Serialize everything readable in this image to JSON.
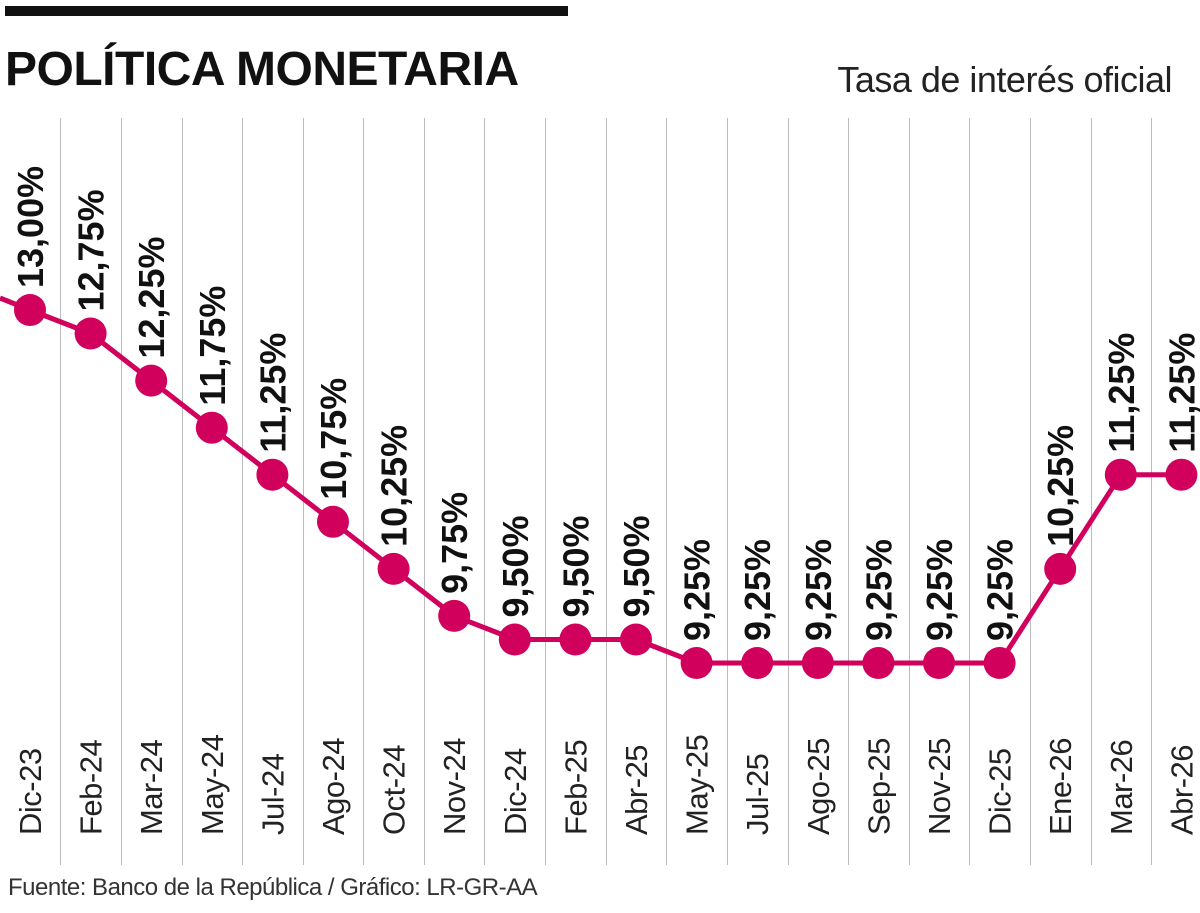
{
  "header": {
    "title": "POLÍTICA MONETARIA",
    "subtitle": "Tasa de interés oficial"
  },
  "footer": {
    "source": "Fuente: Banco de la República / Gráfico: LR-GR-AA"
  },
  "colors": {
    "line": "#d1005d",
    "grid": "#bbbbbb",
    "text": "#111111"
  },
  "chart_data": {
    "type": "line",
    "title": "Tasa de interés oficial",
    "categories": [
      "Dic-23",
      "Feb-24",
      "Mar-24",
      "May-24",
      "Jul-24",
      "Ago-24",
      "Oct-24",
      "Nov-24",
      "Dic-24",
      "Feb-25",
      "Abr-25",
      "May-25",
      "Jul-25",
      "Ago-25",
      "Sep-25",
      "Nov-25",
      "Dic-25",
      "Ene-26",
      "Mar-26",
      "Abr-26"
    ],
    "values": [
      13.0,
      12.75,
      12.25,
      11.75,
      11.25,
      10.75,
      10.25,
      9.75,
      9.5,
      9.5,
      9.5,
      9.25,
      9.25,
      9.25,
      9.25,
      9.25,
      9.25,
      10.25,
      11.25,
      11.25
    ],
    "value_labels": [
      "13,00%",
      "12,75%",
      "12,25%",
      "11,75%",
      "11,25%",
      "10,75%",
      "10,25%",
      "9,75%",
      "9,50%",
      "9,50%",
      "9,50%",
      "9,25%",
      "9,25%",
      "9,25%",
      "9,25%",
      "9,25%",
      "9,25%",
      "10,25%",
      "11,25%",
      "11,25%"
    ],
    "xlabel": "",
    "ylabel": "",
    "ylim": [
      9.25,
      13.0
    ],
    "grid": true,
    "legend": "none"
  }
}
